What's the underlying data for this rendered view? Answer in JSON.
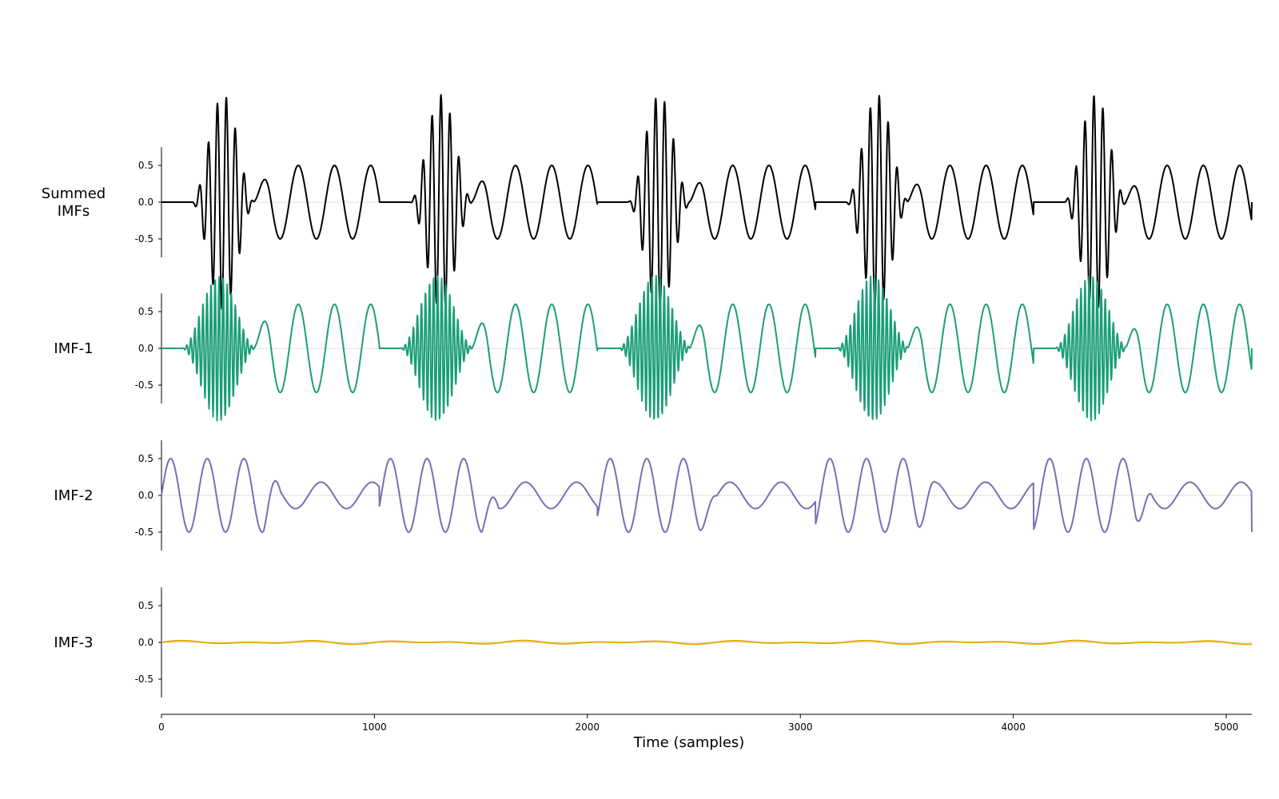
{
  "chart_data": {
    "type": "line",
    "title": "",
    "xlabel": "Time (samples)",
    "xlim": [
      0,
      5120
    ],
    "x_ticks": [
      0,
      1000,
      2000,
      3000,
      4000,
      5000
    ],
    "x_tick_labels": [
      "0",
      "1000",
      "2000",
      "3000",
      "4000",
      "5000"
    ],
    "grid": false,
    "legend": "none",
    "series": [
      {
        "label_lines": [
          "Summed",
          "IMFs"
        ],
        "color": "#000000",
        "ylim": [
          -0.75,
          0.75
        ],
        "y_ticks": [
          0.5,
          0.0,
          -0.5
        ],
        "y_tick_labels": [
          "0.5",
          "0.0",
          "-0.5"
        ],
        "model": {
          "period_samples": 1024,
          "packet_peak": 1.46,
          "packet_center": 290,
          "packet_halfwidth": 150,
          "packet_cycle_samples": 42,
          "slow_amplitude": 0.5,
          "slow_cycle_samples": 170
        }
      },
      {
        "label_lines": [
          "IMF-1"
        ],
        "color": "#1b9e77",
        "ylim": [
          -0.75,
          0.75
        ],
        "y_ticks": [
          0.5,
          0.0,
          -0.5
        ],
        "y_tick_labels": [
          "0.5",
          "0.0",
          "-0.5"
        ],
        "model": {
          "period_samples": 1024,
          "packet_peak": 0.99,
          "packet_center": 270,
          "packet_halfwidth": 175,
          "packet_cycle_samples": 19,
          "slow_amplitude": 0.6,
          "slow_cycle_samples": 170
        }
      },
      {
        "label_lines": [
          "IMF-2"
        ],
        "color": "#7570b3",
        "ylim": [
          -0.75,
          0.75
        ],
        "y_ticks": [
          0.5,
          0.0,
          -0.5
        ],
        "y_tick_labels": [
          "0.5",
          "0.0",
          "-0.5"
        ],
        "model": {
          "period_samples": 1024,
          "active_amplitude": 0.5,
          "active_cycle_samples": 172,
          "quiet_amplitude": 0.18,
          "quiet_cycle_samples": 240,
          "offset": 0.0
        }
      },
      {
        "label_lines": [
          "IMF-3"
        ],
        "color": "#e6ab02",
        "ylim": [
          -0.75,
          0.75
        ],
        "y_ticks": [
          0.5,
          0.0,
          -0.5
        ],
        "y_tick_labels": [
          "0.5",
          "0.0",
          "-0.5"
        ],
        "model": {
          "amplitude": 0.025,
          "cycle_samples": 400
        }
      }
    ]
  }
}
